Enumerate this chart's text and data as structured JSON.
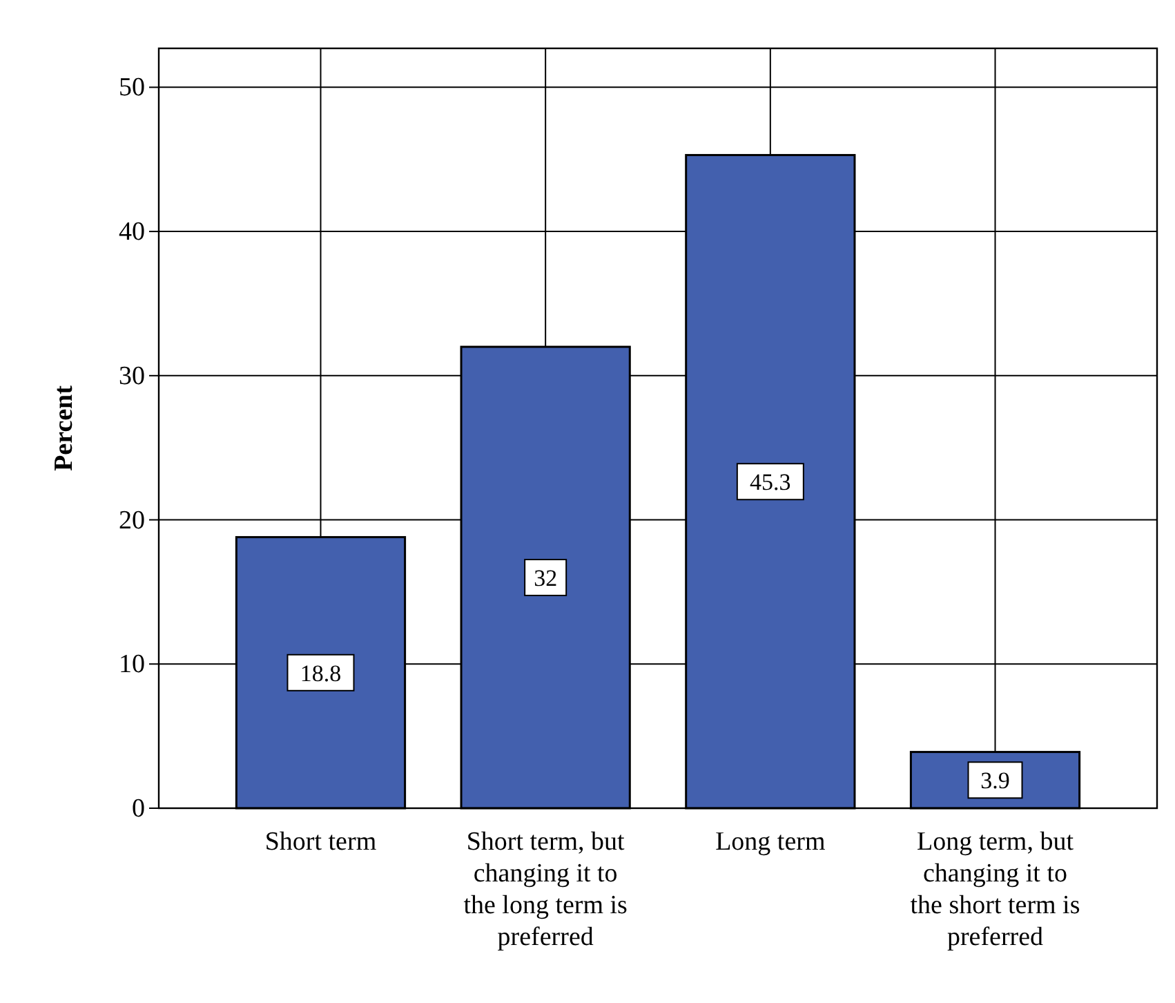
{
  "chart_data": {
    "type": "bar",
    "ylabel": "Percent",
    "categories": [
      "Short term",
      "Short term, but changing it to the long term is preferred",
      "Long term",
      "Long term, but changing it to the short term is preferred"
    ],
    "values": [
      18.8,
      32,
      45.3,
      3.9
    ],
    "color": "#4360ae",
    "ylim": [
      0,
      52.7
    ],
    "yticks": [
      0,
      10,
      20,
      30,
      40,
      50
    ],
    "grid": true,
    "data_labels": true
  }
}
